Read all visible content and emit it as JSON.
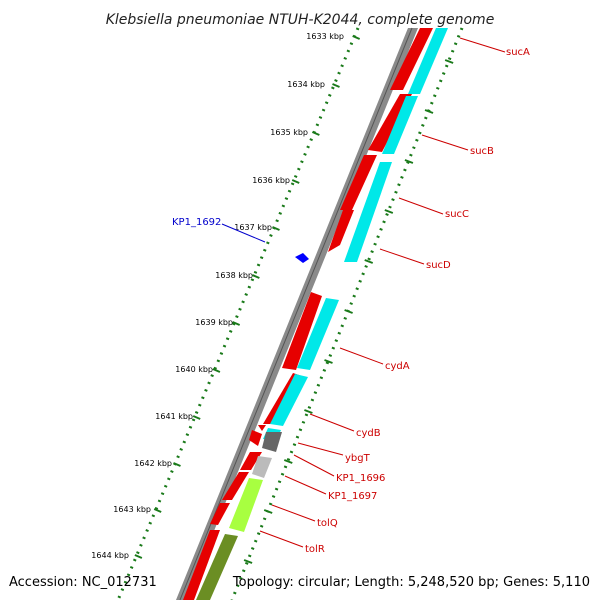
{
  "title": "Klebsiella pneumoniae NTUH-K2044, complete genome",
  "accession": "Accession: NC_012731",
  "summary": "Topology: circular; Length: 5,248,520 bp; Genes: 5,110",
  "colors": {
    "backbone": "#8a8a8a",
    "backbone_dark": "#555555",
    "forward_feature": "#e60000",
    "cds_reverse": "#00e8e8",
    "gray_cds": "#666666",
    "light_gray_cds": "#bbbbbb",
    "lime_cds": "#a8ff40",
    "olive_cds": "#6b8e23",
    "tick_dots": "#1a7a1a",
    "label_red": "#cc0000",
    "label_blue": "#0000cc"
  },
  "ticks": [
    {
      "label": "1633 kbp"
    },
    {
      "label": "1634 kbp"
    },
    {
      "label": "1635 kbp"
    },
    {
      "label": "1636 kbp"
    },
    {
      "label": "1637 kbp"
    },
    {
      "label": "1638 kbp"
    },
    {
      "label": "1639 kbp"
    },
    {
      "label": "1640 kbp"
    },
    {
      "label": "1641 kbp"
    },
    {
      "label": "1642 kbp"
    },
    {
      "label": "1643 kbp"
    },
    {
      "label": "1644 kbp"
    }
  ],
  "genes": [
    {
      "name": "sucA",
      "color": "label_red"
    },
    {
      "name": "sucB",
      "color": "label_red"
    },
    {
      "name": "sucC",
      "color": "label_red"
    },
    {
      "name": "sucD",
      "color": "label_red"
    },
    {
      "name": "KP1_1692",
      "color": "label_blue"
    },
    {
      "name": "cydA",
      "color": "label_red"
    },
    {
      "name": "cydB",
      "color": "label_red"
    },
    {
      "name": "ybgT",
      "color": "label_red"
    },
    {
      "name": "KP1_1696",
      "color": "label_red"
    },
    {
      "name": "KP1_1697",
      "color": "label_red"
    },
    {
      "name": "tolQ",
      "color": "label_red"
    },
    {
      "name": "tolR",
      "color": "label_red"
    }
  ]
}
